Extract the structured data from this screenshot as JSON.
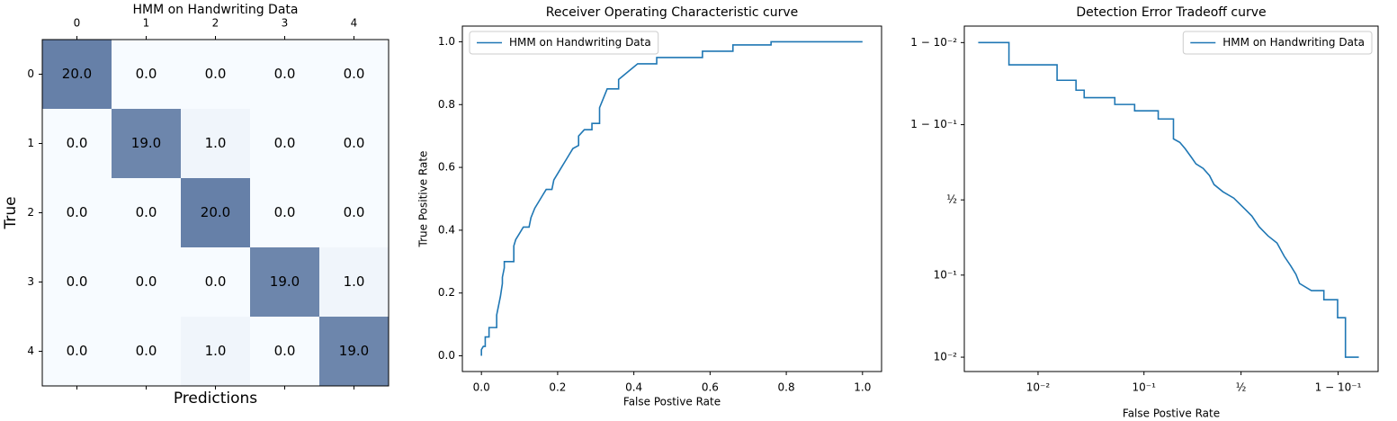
{
  "chart_data": [
    {
      "type": "heatmap",
      "title": "HMM on Handwriting Data",
      "xlabel": "Predictions",
      "ylabel": "True",
      "x_categories": [
        "0",
        "1",
        "2",
        "3",
        "4"
      ],
      "y_categories": [
        "0",
        "1",
        "2",
        "3",
        "4"
      ],
      "values": [
        [
          20,
          0,
          0,
          0,
          0
        ],
        [
          0,
          19,
          1,
          0,
          0
        ],
        [
          0,
          0,
          20,
          0,
          0
        ],
        [
          0,
          0,
          0,
          19,
          1
        ],
        [
          0,
          0,
          1,
          0,
          19
        ]
      ],
      "value_labels": [
        [
          "20.0",
          "0.0",
          "0.0",
          "0.0",
          "0.0"
        ],
        [
          "0.0",
          "19.0",
          "1.0",
          "0.0",
          "0.0"
        ],
        [
          "0.0",
          "0.0",
          "20.0",
          "0.0",
          "0.0"
        ],
        [
          "0.0",
          "0.0",
          "0.0",
          "19.0",
          "1.0"
        ],
        [
          "0.0",
          "0.0",
          "1.0",
          "0.0",
          "19.0"
        ]
      ],
      "colors": [
        "#f7fbff",
        "#6680a8"
      ]
    },
    {
      "type": "line",
      "title": "Receiver Operating Characteristic curve",
      "xlabel": "False Postive Rate",
      "ylabel": "True Positive Rate",
      "xlim": [
        -0.05,
        1.05
      ],
      "ylim": [
        -0.05,
        1.05
      ],
      "xticks": [
        {
          "value": 0,
          "label": "0.0"
        },
        0.2,
        0.4,
        0.6,
        0.8,
        {
          "value": 1,
          "label": "1.0"
        }
      ],
      "yticks": [
        {
          "value": 0,
          "label": "0.0"
        },
        0.2,
        0.4,
        0.6,
        0.8,
        {
          "value": 1,
          "label": "1.0"
        }
      ],
      "scale": "linear",
      "legend": "upper left",
      "x": [
        0,
        0,
        0.005,
        0.01,
        0.01,
        0.02,
        0.02,
        0.04,
        0.04,
        0.045,
        0.05,
        0.055,
        0.055,
        0.06,
        0.06,
        0.085,
        0.085,
        0.09,
        0.1,
        0.11,
        0.125,
        0.13,
        0.14,
        0.15,
        0.16,
        0.17,
        0.185,
        0.19,
        0.2,
        0.21,
        0.22,
        0.23,
        0.24,
        0.255,
        0.255,
        0.27,
        0.29,
        0.29,
        0.31,
        0.31,
        0.32,
        0.33,
        0.36,
        0.36,
        0.37,
        0.38,
        0.39,
        0.4,
        0.41,
        0.46,
        0.46,
        0.58,
        0.58,
        0.66,
        0.66,
        0.76,
        0.76,
        1.0
      ],
      "series": [
        {
          "name": "HMM on Handwriting Data",
          "color": "#1f77b4",
          "values": [
            0,
            0.02,
            0.03,
            0.03,
            0.06,
            0.06,
            0.09,
            0.09,
            0.13,
            0.16,
            0.19,
            0.23,
            0.25,
            0.28,
            0.3,
            0.3,
            0.35,
            0.37,
            0.39,
            0.41,
            0.41,
            0.44,
            0.47,
            0.49,
            0.51,
            0.53,
            0.53,
            0.56,
            0.58,
            0.6,
            0.62,
            0.64,
            0.66,
            0.67,
            0.7,
            0.72,
            0.72,
            0.74,
            0.74,
            0.79,
            0.82,
            0.85,
            0.85,
            0.88,
            0.89,
            0.9,
            0.91,
            0.92,
            0.93,
            0.93,
            0.95,
            0.95,
            0.97,
            0.97,
            0.99,
            0.99,
            1.0,
            1.0
          ]
        }
      ]
    },
    {
      "type": "line",
      "title": "Detection Error Tradeoff curve",
      "xlabel": "False Postive Rate",
      "xlim": [
        0.0019,
        0.957
      ],
      "ylim": [
        0.0066,
        0.9938
      ],
      "xticks": [
        {
          "value": 0.01,
          "label": "10⁻²"
        },
        {
          "value": 0.1,
          "label": "10⁻¹"
        },
        {
          "value": 0.5,
          "label": "½"
        },
        {
          "value": 0.9,
          "label": "1 − 10⁻¹"
        }
      ],
      "yticks": [
        {
          "value": 0.01,
          "label": "10⁻²"
        },
        {
          "value": 0.1,
          "label": "10⁻¹"
        },
        {
          "value": 0.5,
          "label": "½"
        },
        {
          "value": 0.9,
          "label": "1 − 10⁻¹"
        },
        {
          "value": 0.99,
          "label": "1 − 10⁻²"
        }
      ],
      "scale": "logit",
      "legend": "upper right",
      "x": [
        0.0026,
        0.0052,
        0.0052,
        0.0153,
        0.0153,
        0.0233,
        0.0233,
        0.0279,
        0.0279,
        0.0543,
        0.0543,
        0.0825,
        0.0825,
        0.133,
        0.133,
        0.178,
        0.178,
        0.2,
        0.22,
        0.246,
        0.265,
        0.298,
        0.329,
        0.352,
        0.399,
        0.459,
        0.5,
        0.526,
        0.561,
        0.601,
        0.648,
        0.693,
        0.727,
        0.754,
        0.776,
        0.79,
        0.831,
        0.867,
        0.867,
        0.899,
        0.899,
        0.914,
        0.914,
        0.935
      ],
      "series": [
        {
          "name": "HMM on Handwriting Data",
          "color": "#1f77b4",
          "values": [
            0.99,
            0.99,
            0.981,
            0.981,
            0.9705,
            0.9705,
            0.961,
            0.961,
            0.952,
            0.952,
            0.942,
            0.942,
            0.931,
            0.931,
            0.914,
            0.914,
            0.856,
            0.843,
            0.817,
            0.775,
            0.741,
            0.715,
            0.67,
            0.61,
            0.559,
            0.513,
            0.461,
            0.428,
            0.384,
            0.313,
            0.259,
            0.221,
            0.161,
            0.128,
            0.102,
            0.08,
            0.066,
            0.066,
            0.0514,
            0.0514,
            0.031,
            0.031,
            0.01,
            0.01
          ]
        }
      ]
    }
  ]
}
